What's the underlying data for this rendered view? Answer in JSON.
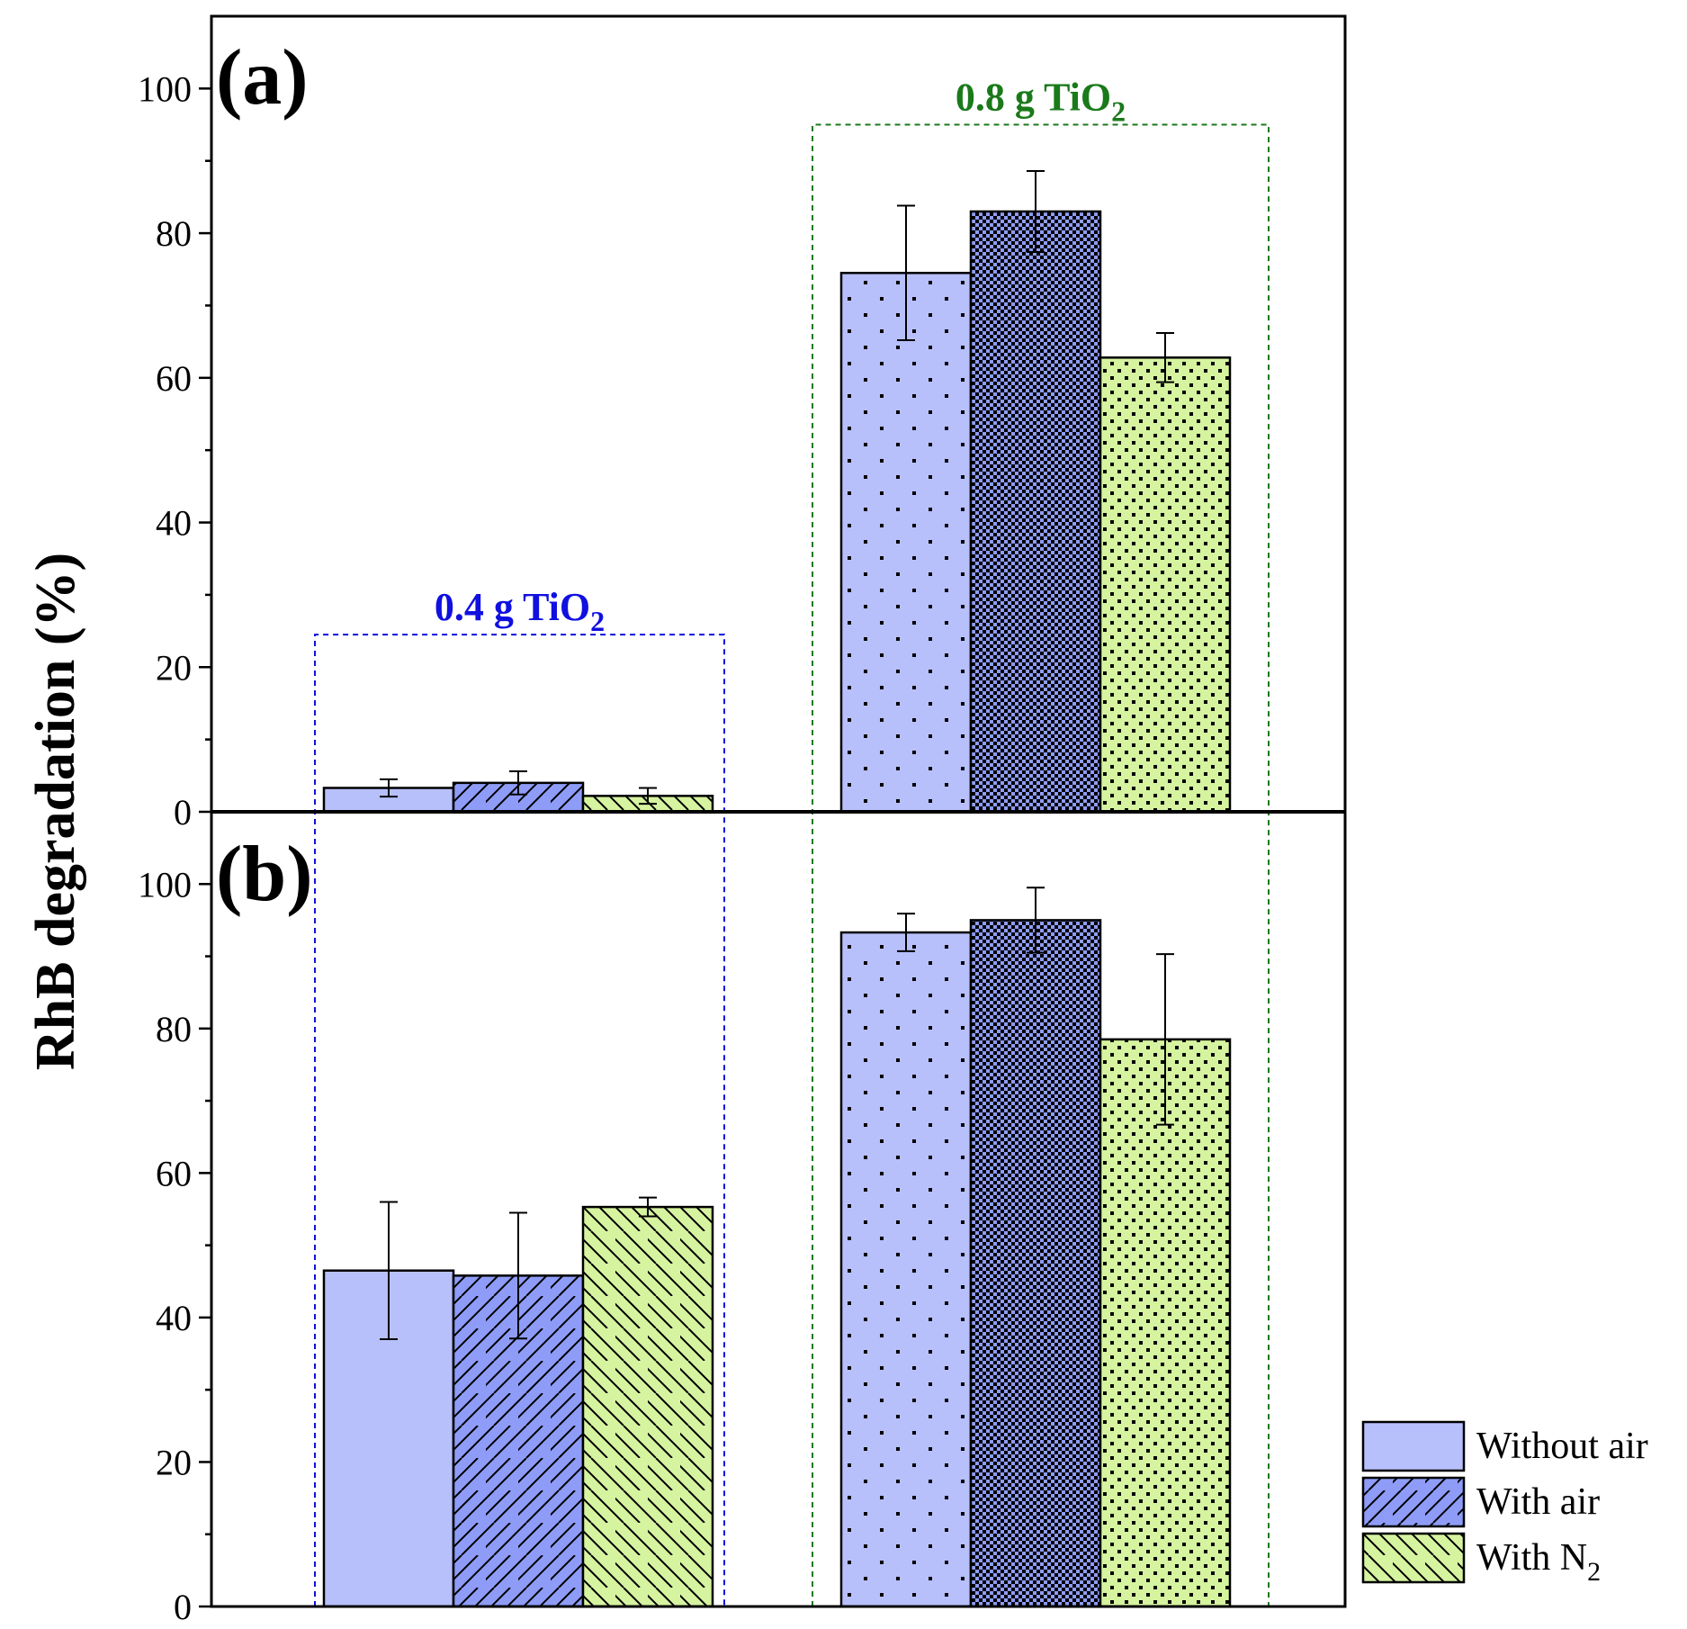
{
  "chart_data": {
    "type": "bar",
    "ylabel": "RhB degradation (%)",
    "ylim": [
      0,
      110
    ],
    "yticks": [
      0,
      20,
      40,
      60,
      80,
      100
    ],
    "groups": [
      {
        "label": "0.4 g TiO",
        "subscript": "2",
        "color": "#1010e0",
        "box_top": 24.5
      },
      {
        "label": "0.8 g TiO",
        "subscript": "2",
        "color": "#1a7a1a",
        "box_top": 95
      }
    ],
    "series": [
      {
        "name": "Without air",
        "subscript": "",
        "fill": "#b8c0fc",
        "pattern_group1": "none",
        "pattern_group2": "dots-sparse"
      },
      {
        "name": "With air",
        "subscript": "",
        "fill": "#8e9cf8",
        "pattern_group1": "hatch-forward",
        "pattern_group2": "checker"
      },
      {
        "name": "With N",
        "subscript": "2",
        "fill": "#d6f3a0",
        "pattern_group1": "hatch-back",
        "pattern_group2": "dots-dense"
      }
    ],
    "panels": [
      {
        "label": "(a)",
        "bars": [
          {
            "group": 0,
            "series": 0,
            "value": 3.3,
            "error": 1.2
          },
          {
            "group": 0,
            "series": 1,
            "value": 4.0,
            "error": 1.6
          },
          {
            "group": 0,
            "series": 2,
            "value": 2.2,
            "error": 1.1
          },
          {
            "group": 1,
            "series": 0,
            "value": 74.5,
            "error": 9.3
          },
          {
            "group": 1,
            "series": 1,
            "value": 83.0,
            "error": 5.6
          },
          {
            "group": 1,
            "series": 2,
            "value": 62.8,
            "error": 3.4
          }
        ]
      },
      {
        "label": "(b)",
        "bars": [
          {
            "group": 0,
            "series": 0,
            "value": 46.5,
            "error": 9.5
          },
          {
            "group": 0,
            "series": 1,
            "value": 45.8,
            "error": 8.7
          },
          {
            "group": 0,
            "series": 2,
            "value": 55.3,
            "error": 1.3
          },
          {
            "group": 1,
            "series": 0,
            "value": 93.3,
            "error": 2.6
          },
          {
            "group": 1,
            "series": 1,
            "value": 95.0,
            "error": 4.5
          },
          {
            "group": 1,
            "series": 2,
            "value": 78.5,
            "error": 11.8
          }
        ]
      }
    ],
    "legend_position": "bottom-right"
  }
}
